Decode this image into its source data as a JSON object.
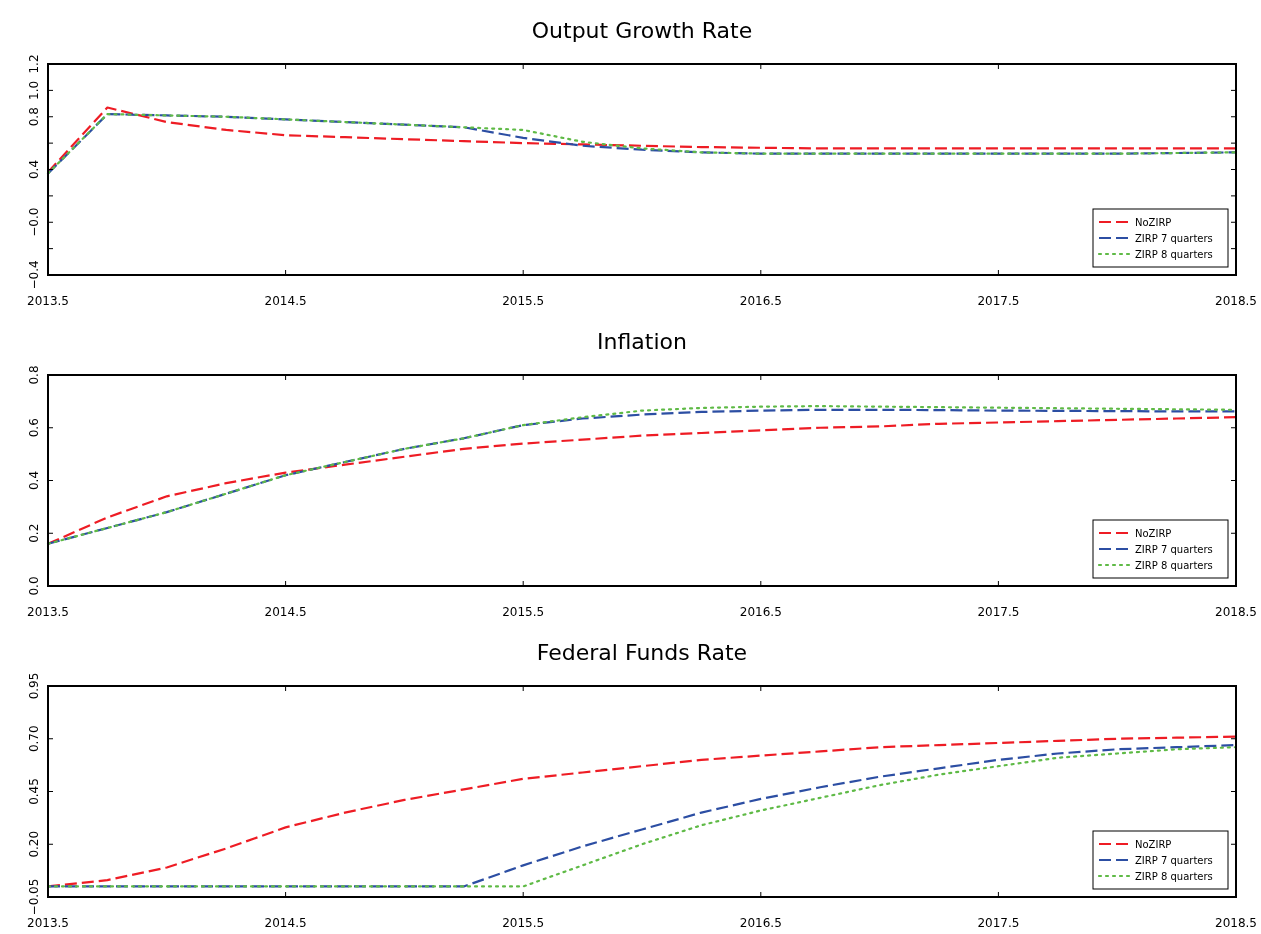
{
  "chart_data": [
    {
      "type": "line",
      "title": "Output Growth Rate",
      "x": [
        2013.5,
        2013.75,
        2014,
        2014.25,
        2014.5,
        2014.75,
        2015,
        2015.25,
        2015.5,
        2015.75,
        2016,
        2016.25,
        2016.5,
        2016.75,
        2017,
        2017.25,
        2017.5,
        2017.75,
        2018,
        2018.25,
        2018.5
      ],
      "xlim": [
        2013.5,
        2018.5
      ],
      "xticks": [
        2013.5,
        2014.5,
        2015.5,
        2016.5,
        2017.5,
        2018.5
      ],
      "ylim": [
        -0.4,
        1.2
      ],
      "yticks": [
        {
          "value": -0.4,
          "label": "−0.4"
        },
        {
          "value": -0.2,
          "label": null
        },
        {
          "value": 0,
          "label": "−0.0"
        },
        {
          "value": 0.2,
          "label": null
        },
        {
          "value": 0.4,
          "label": "0.4"
        },
        {
          "value": 0.6,
          "label": null
        },
        {
          "value": 0.8,
          "label": "0.8"
        },
        {
          "value": 1.0,
          "label": "1.0"
        },
        {
          "value": 1.2,
          "label": "1.2"
        }
      ],
      "legend": "bottom right",
      "grid": false,
      "series": [
        {
          "name": "NoZIRP",
          "color": "#ee1c24",
          "line_style": "dashed",
          "values": [
            0.38,
            0.87,
            0.76,
            0.7,
            0.66,
            0.645,
            0.63,
            0.615,
            0.6,
            0.59,
            0.58,
            0.57,
            0.565,
            0.56,
            0.56,
            0.56,
            0.56,
            0.56,
            0.56,
            0.56,
            0.56
          ]
        },
        {
          "name": "ZIRP 7 quarters",
          "color": "#2c4ea3",
          "line_style": "dashed",
          "values": [
            0.37,
            0.82,
            0.81,
            0.8,
            0.78,
            0.76,
            0.74,
            0.72,
            0.64,
            0.58,
            0.55,
            0.53,
            0.52,
            0.52,
            0.52,
            0.52,
            0.52,
            0.52,
            0.52,
            0.525,
            0.53
          ]
        },
        {
          "name": "ZIRP 8 quarters",
          "color": "#5fba46",
          "line_style": "dotted",
          "values": [
            0.37,
            0.82,
            0.81,
            0.8,
            0.78,
            0.76,
            0.74,
            0.72,
            0.7,
            0.61,
            0.56,
            0.53,
            0.52,
            0.52,
            0.52,
            0.52,
            0.52,
            0.52,
            0.52,
            0.525,
            0.53
          ]
        }
      ]
    },
    {
      "type": "line",
      "title": "Inflation",
      "x": [
        2013.5,
        2013.75,
        2014,
        2014.25,
        2014.5,
        2014.75,
        2015,
        2015.25,
        2015.5,
        2015.75,
        2016,
        2016.25,
        2016.5,
        2016.75,
        2017,
        2017.25,
        2017.5,
        2017.75,
        2018,
        2018.25,
        2018.5
      ],
      "xlim": [
        2013.5,
        2018.5
      ],
      "xticks": [
        2013.5,
        2014.5,
        2015.5,
        2016.5,
        2017.5,
        2018.5
      ],
      "ylim": [
        0,
        0.8
      ],
      "yticks": [
        {
          "value": 0,
          "label": "0.0"
        },
        {
          "value": 0.2,
          "label": "0.2"
        },
        {
          "value": 0.4,
          "label": "0.4"
        },
        {
          "value": 0.6,
          "label": "0.6"
        },
        {
          "value": 0.8,
          "label": "0.8"
        }
      ],
      "legend": "bottom right",
      "grid": false,
      "series": [
        {
          "name": "NoZIRP",
          "color": "#ee1c24",
          "line_style": "dashed",
          "values": [
            0.16,
            0.26,
            0.34,
            0.39,
            0.43,
            0.46,
            0.49,
            0.52,
            0.54,
            0.555,
            0.57,
            0.58,
            0.59,
            0.6,
            0.605,
            0.615,
            0.62,
            0.625,
            0.63,
            0.635,
            0.64
          ]
        },
        {
          "name": "ZIRP 7 quarters",
          "color": "#2c4ea3",
          "line_style": "dashed",
          "values": [
            0.16,
            0.22,
            0.28,
            0.35,
            0.42,
            0.47,
            0.52,
            0.56,
            0.61,
            0.635,
            0.65,
            0.66,
            0.665,
            0.668,
            0.668,
            0.667,
            0.665,
            0.664,
            0.663,
            0.662,
            0.662
          ]
        },
        {
          "name": "ZIRP 8 quarters",
          "color": "#5fba46",
          "line_style": "dotted",
          "values": [
            0.16,
            0.22,
            0.28,
            0.35,
            0.42,
            0.47,
            0.52,
            0.56,
            0.61,
            0.64,
            0.665,
            0.675,
            0.68,
            0.682,
            0.68,
            0.678,
            0.676,
            0.674,
            0.672,
            0.67,
            0.668
          ]
        }
      ]
    },
    {
      "type": "line",
      "title": "Federal Funds Rate",
      "x": [
        2013.5,
        2013.75,
        2014,
        2014.25,
        2014.5,
        2014.75,
        2015,
        2015.25,
        2015.5,
        2015.75,
        2016,
        2016.25,
        2016.5,
        2016.75,
        2017,
        2017.25,
        2017.5,
        2017.75,
        2018,
        2018.25,
        2018.5
      ],
      "xlim": [
        2013.5,
        2018.5
      ],
      "xticks": [
        2013.5,
        2014.5,
        2015.5,
        2016.5,
        2017.5,
        2018.5
      ],
      "ylim": [
        -0.05,
        0.95
      ],
      "yticks": [
        {
          "value": -0.05,
          "label": "−0.05"
        },
        {
          "value": 0.2,
          "label": "0.20"
        },
        {
          "value": 0.45,
          "label": "0.45"
        },
        {
          "value": 0.7,
          "label": "0.70"
        },
        {
          "value": 0.95,
          "label": "0.95"
        }
      ],
      "legend": "bottom right",
      "grid": false,
      "series": [
        {
          "name": "NoZIRP",
          "color": "#ee1c24",
          "line_style": "dashed",
          "values": [
            0.0,
            0.03,
            0.09,
            0.18,
            0.28,
            0.35,
            0.41,
            0.46,
            0.51,
            0.54,
            0.57,
            0.6,
            0.62,
            0.64,
            0.66,
            0.67,
            0.68,
            0.69,
            0.7,
            0.705,
            0.71
          ]
        },
        {
          "name": "ZIRP 7 quarters",
          "color": "#2c4ea3",
          "line_style": "dashed",
          "values": [
            0.0,
            0.0,
            0.0,
            0.0,
            0.0,
            0.0,
            0.0,
            0.0,
            0.1,
            0.19,
            0.27,
            0.35,
            0.415,
            0.47,
            0.52,
            0.56,
            0.6,
            0.63,
            0.65,
            0.66,
            0.67
          ]
        },
        {
          "name": "ZIRP 8 quarters",
          "color": "#5fba46",
          "line_style": "dotted",
          "values": [
            0.0,
            0.0,
            0.0,
            0.0,
            0.0,
            0.0,
            0.0,
            0.0,
            0.0,
            0.1,
            0.2,
            0.29,
            0.36,
            0.42,
            0.48,
            0.53,
            0.57,
            0.61,
            0.63,
            0.65,
            0.66
          ]
        }
      ]
    }
  ]
}
